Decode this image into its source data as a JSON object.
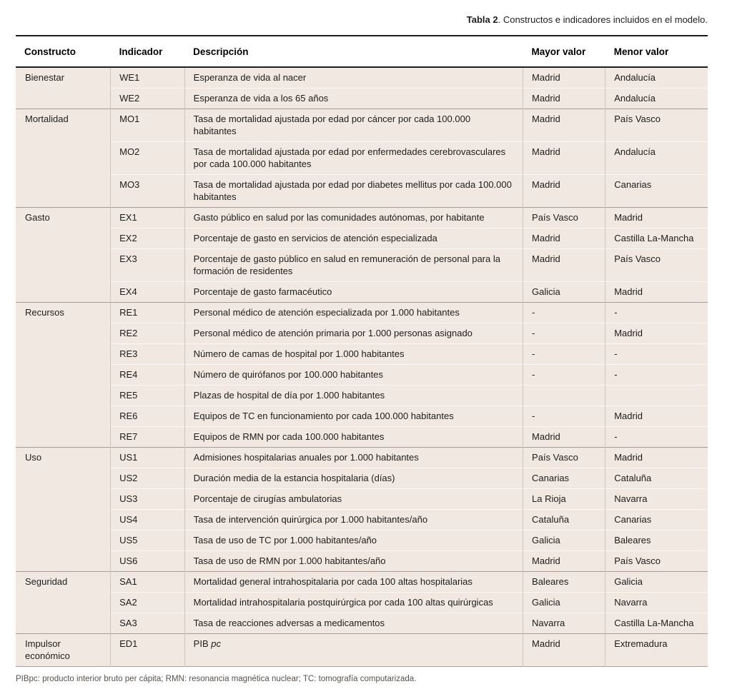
{
  "caption": {
    "bold": "Tabla 2",
    "rest": ". Constructos e indicadores incluidos en el modelo."
  },
  "table": {
    "headers": [
      "Constructo",
      "Indicador",
      "Descripción",
      "Mayor valor",
      "Menor valor"
    ],
    "groups": [
      {
        "construct": "Bienestar",
        "rows": [
          {
            "indicator": "WE1",
            "description": "Esperanza de vida al nacer",
            "mayor": "Madrid",
            "menor": "Andalucía"
          },
          {
            "indicator": "WE2",
            "description": "Esperanza de vida a los 65 años",
            "mayor": "Madrid",
            "menor": "Andalucía"
          }
        ]
      },
      {
        "construct": "Mortalidad",
        "rows": [
          {
            "indicator": "MO1",
            "description": "Tasa de mortalidad ajustada por edad por cáncer por cada 100.000 habitantes",
            "mayor": "Madrid",
            "menor": "País Vasco"
          },
          {
            "indicator": "MO2",
            "description": "Tasa de mortalidad ajustada por edad por enfermedades cerebrovasculares por cada 100.000 habitantes",
            "mayor": "Madrid",
            "menor": "Andalucía"
          },
          {
            "indicator": "MO3",
            "description": "Tasa de mortalidad ajustada por edad por diabetes mellitus por cada 100.000 habitantes",
            "mayor": "Madrid",
            "menor": "Canarias"
          }
        ]
      },
      {
        "construct": "Gasto",
        "rows": [
          {
            "indicator": "EX1",
            "description": "Gasto público en salud por las comunidades autónomas, por habitante",
            "mayor": "País Vasco",
            "menor": "Madrid"
          },
          {
            "indicator": "EX2",
            "description": "Porcentaje de gasto en servicios de atención especializada",
            "mayor": "Madrid",
            "menor": "Castilla La-Mancha"
          },
          {
            "indicator": "EX3",
            "description": "Porcentaje de gasto público en salud en remuneración de personal para la formación de residentes",
            "mayor": "Madrid",
            "menor": "País Vasco"
          },
          {
            "indicator": "EX4",
            "description": "Porcentaje de gasto farmacéutico",
            "mayor": "Galicia",
            "menor": "Madrid"
          }
        ]
      },
      {
        "construct": "Recursos",
        "rows": [
          {
            "indicator": "RE1",
            "description": "Personal médico de atención especializada por 1.000 habitantes",
            "mayor": "-",
            "menor": "-"
          },
          {
            "indicator": "RE2",
            "description": "Personal médico de atención primaria por 1.000 personas asignado",
            "mayor": "-",
            "menor": "Madrid"
          },
          {
            "indicator": "RE3",
            "description": "Número de camas de hospital por 1.000 habitantes",
            "mayor": "-",
            "menor": "-"
          },
          {
            "indicator": "RE4",
            "description": "Número de quirófanos por 100.000 habitantes",
            "mayor": "-",
            "menor": "-"
          },
          {
            "indicator": "RE5",
            "description": "Plazas de hospital de día por 1.000 habitantes",
            "mayor": "",
            "menor": ""
          },
          {
            "indicator": "RE6",
            "description": "Equipos de TC en funcionamiento por cada 100.000 habitantes",
            "mayor": "-",
            "menor": "Madrid"
          },
          {
            "indicator": "RE7",
            "description": "Equipos de RMN por cada 100.000 habitantes",
            "mayor": "Madrid",
            "menor": "-"
          }
        ]
      },
      {
        "construct": "Uso",
        "rows": [
          {
            "indicator": "US1",
            "description": "Admisiones hospitalarias anuales por 1.000 habitantes",
            "mayor": "País Vasco",
            "menor": "Madrid"
          },
          {
            "indicator": "US2",
            "description": "Duración media de la estancia hospitalaria (días)",
            "mayor": "Canarias",
            "menor": "Cataluña"
          },
          {
            "indicator": "US3",
            "description": "Porcentaje de cirugías ambulatorias",
            "mayor": "La Rioja",
            "menor": "Navarra"
          },
          {
            "indicator": "US4",
            "description": "Tasa de intervención quirúrgica por 1.000 habitantes/año",
            "mayor": "Cataluña",
            "menor": "Canarias"
          },
          {
            "indicator": "US5",
            "description": "Tasa de uso de TC por 1.000 habitantes/año",
            "mayor": "Galicia",
            "menor": "Baleares"
          },
          {
            "indicator": "US6",
            "description": "Tasa de uso de RMN por 1.000 habitantes/año",
            "mayor": "Madrid",
            "menor": "País Vasco"
          }
        ]
      },
      {
        "construct": "Seguridad",
        "rows": [
          {
            "indicator": "SA1",
            "description": "Mortalidad general intrahospitalaria por cada 100 altas hospitalarias",
            "mayor": "Baleares",
            "menor": "Galicia"
          },
          {
            "indicator": "SA2",
            "description": "Mortalidad intrahospitalaria postquirúrgica por cada 100 altas quirúrgicas",
            "mayor": "Galicia",
            "menor": "Navarra"
          },
          {
            "indicator": "SA3",
            "description": "Tasa de reacciones adversas a medicamentos",
            "mayor": "Navarra",
            "menor": "Castilla La-Mancha"
          }
        ]
      },
      {
        "construct": "Impulsor económico",
        "rows": [
          {
            "indicator": "ED1",
            "description": "PIB ",
            "description_italic": "pc",
            "mayor": "Madrid",
            "menor": "Extremadura"
          }
        ]
      }
    ]
  },
  "footnote": "PIBpc: producto interior bruto per cápita; RMN: resonancia magnética nuclear; TC: tomografía computarizada.",
  "colors": {
    "cell_background": "#f1e8e1",
    "rule_dark": "#1d1d1b",
    "rule_section": "#a59d96",
    "rule_inner": "#fbf8f5",
    "rule_vertical": "#cfc7c0",
    "footnote_text": "#57524d"
  }
}
